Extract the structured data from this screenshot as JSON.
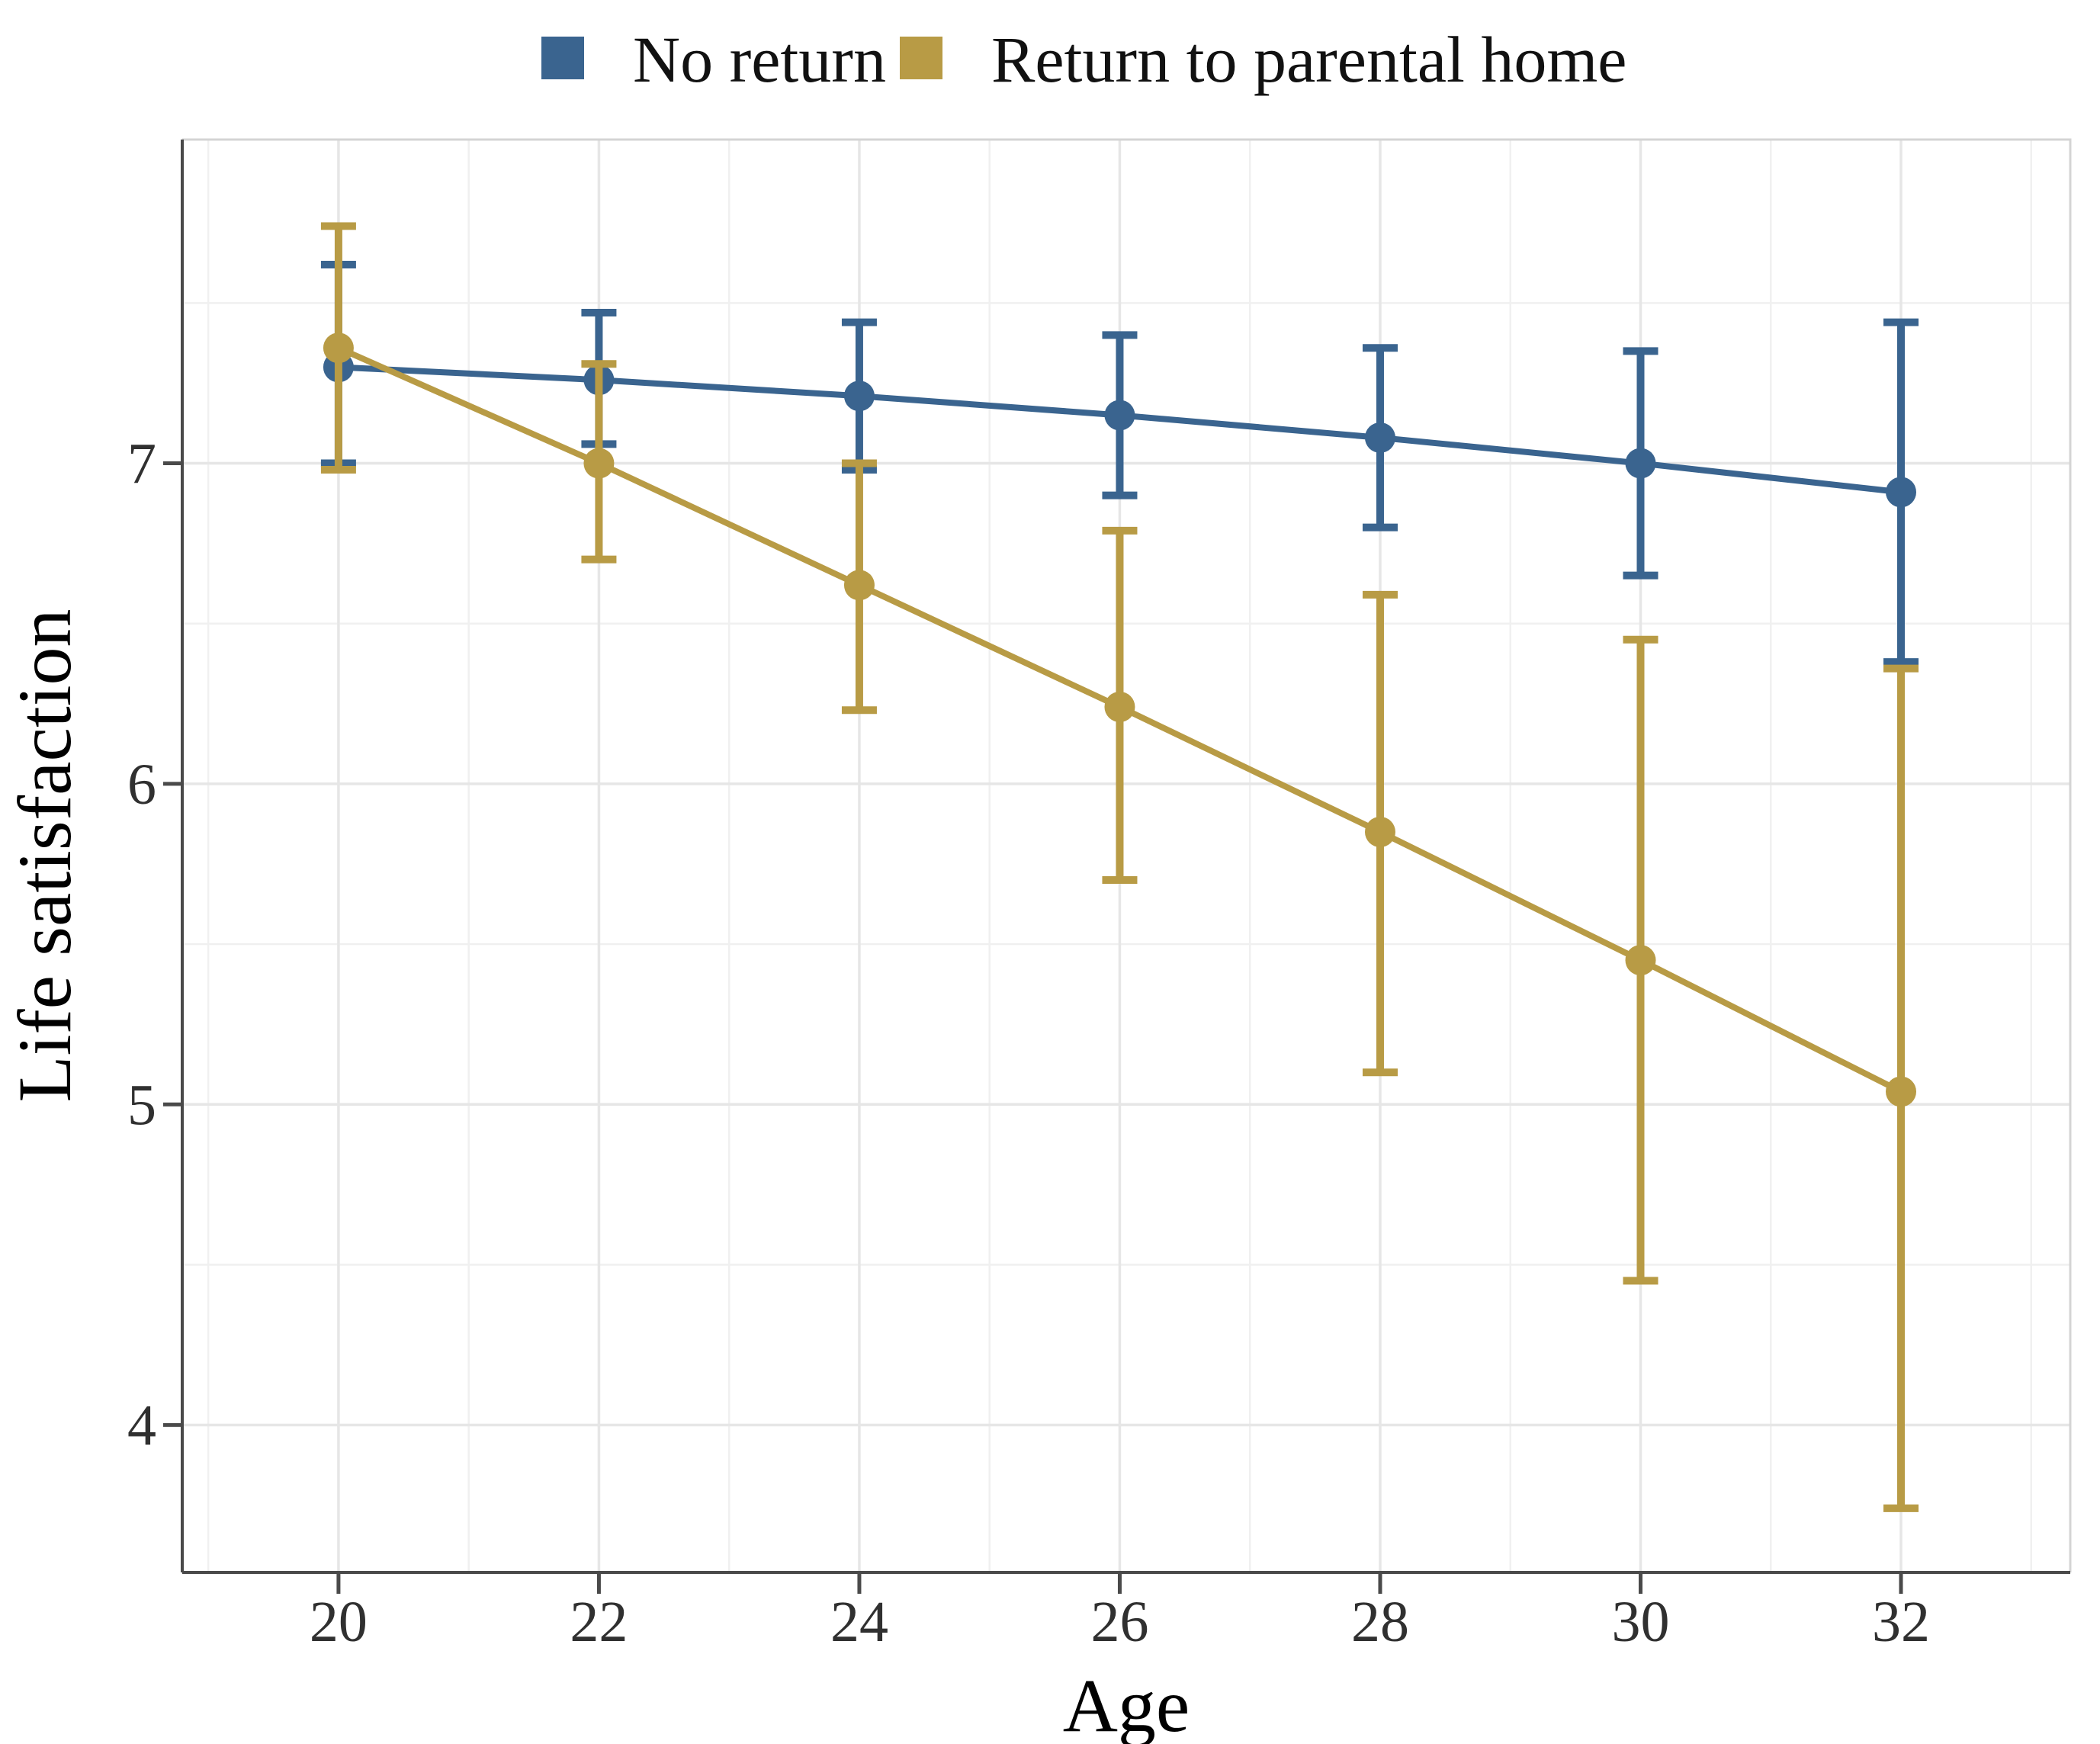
{
  "legend": {
    "items": [
      {
        "label": "No return",
        "color": "#3A648F"
      },
      {
        "label": "Return to parental home",
        "color": "#B89B45"
      }
    ]
  },
  "chart_data": {
    "type": "line",
    "title": "",
    "xlabel": "Age",
    "ylabel": "Life satisfaction",
    "x": [
      20,
      22,
      24,
      26,
      28,
      30,
      32
    ],
    "x_ticks": [
      20,
      22,
      24,
      26,
      28,
      30,
      32
    ],
    "y_ticks": [
      4,
      5,
      6,
      7
    ],
    "xlim": [
      18.8,
      33.3
    ],
    "ylim": [
      3.54,
      8.01
    ],
    "grid": "major+minor",
    "legend_position": "top-center",
    "error_bars": "95% interval caps",
    "series": [
      {
        "name": "No return",
        "color": "#3A648F",
        "values": [
          7.3,
          7.26,
          7.21,
          7.15,
          7.08,
          7.0,
          6.91
        ],
        "ci_low": [
          7.0,
          7.06,
          6.98,
          6.9,
          6.8,
          6.65,
          6.38
        ],
        "ci_high": [
          7.62,
          7.47,
          7.44,
          7.4,
          7.36,
          7.35,
          7.44
        ]
      },
      {
        "name": "Return to parental home",
        "color": "#B89B45",
        "values": [
          7.36,
          7.0,
          6.62,
          6.24,
          5.85,
          5.45,
          5.04
        ],
        "ci_low": [
          6.98,
          6.7,
          6.23,
          5.7,
          5.1,
          4.45,
          3.74
        ],
        "ci_high": [
          7.74,
          7.31,
          7.0,
          6.79,
          6.59,
          6.45,
          6.36
        ]
      }
    ],
    "style": {
      "panel_background": "#FFFFFF",
      "grid_major_color": "#E6E6E6",
      "grid_minor_color": "#F0F0F0",
      "axis_line_color": "#4A4A4A",
      "panel_border_color": "#D4D4D4",
      "tick_label_color": "#303030"
    }
  }
}
